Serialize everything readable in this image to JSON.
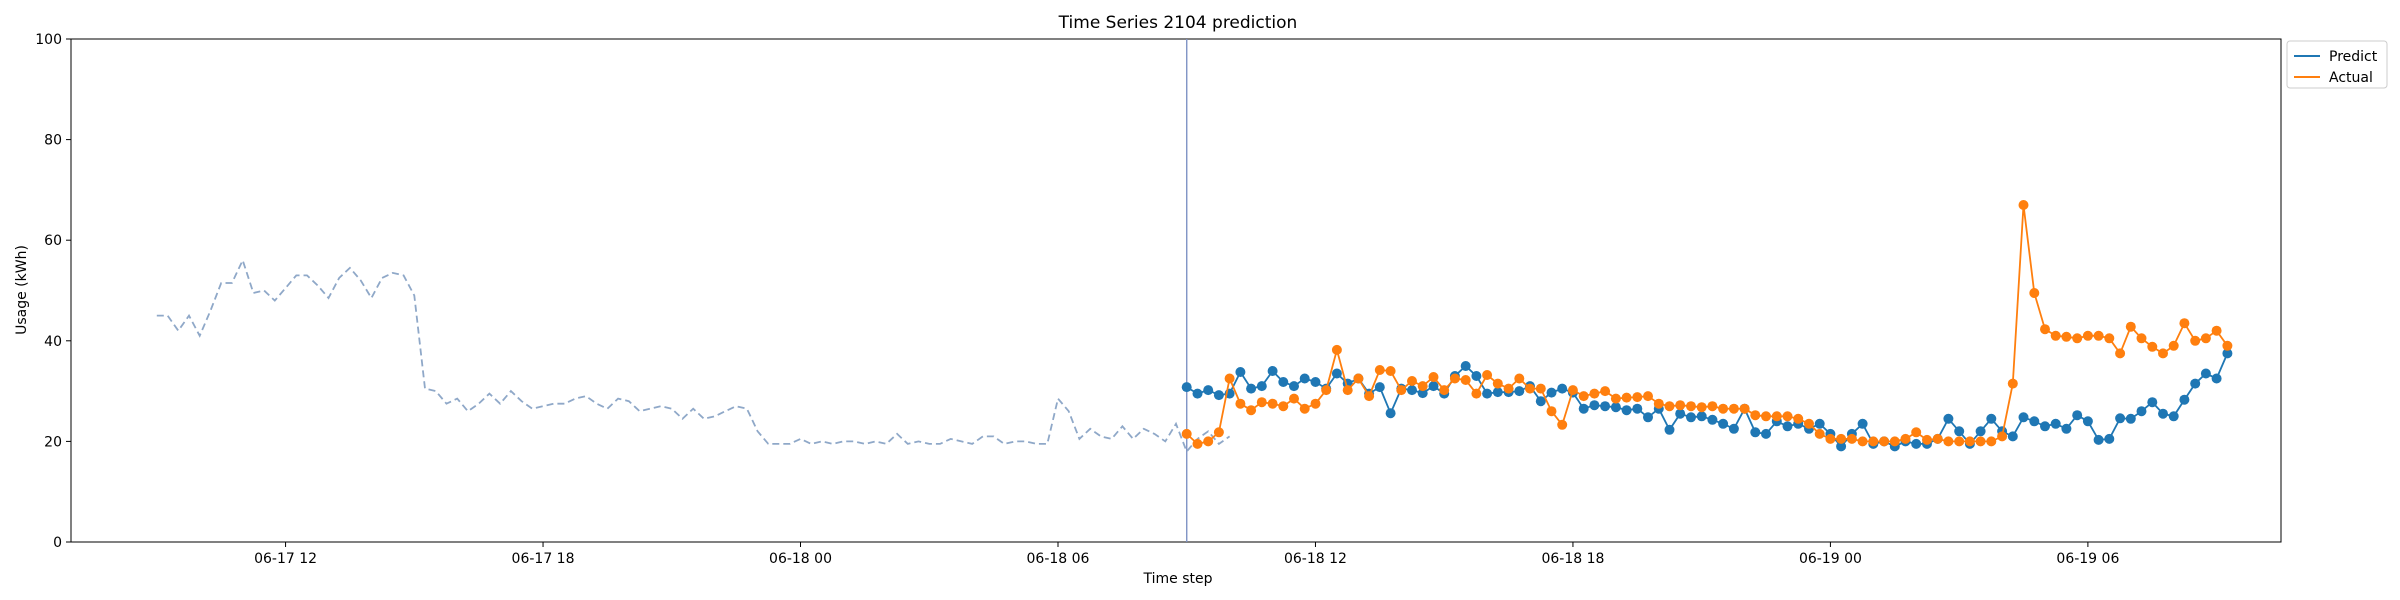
{
  "chart_data": {
    "type": "line",
    "title": "Time Series 2104 prediction",
    "xlabel": "Time step",
    "ylabel": "Usage (kWh)",
    "ylim": [
      0,
      100
    ],
    "yticks": [
      0,
      20,
      40,
      60,
      80,
      100
    ],
    "xlim": [
      "2025-06-17 07:00",
      "2025-06-19 10:30"
    ],
    "xticks": [
      {
        "t": "2025-06-17 12:00",
        "label": "06-17 12"
      },
      {
        "t": "2025-06-17 18:00",
        "label": "06-17 18"
      },
      {
        "t": "2025-06-18 00:00",
        "label": "06-18 00"
      },
      {
        "t": "2025-06-18 06:00",
        "label": "06-18 06"
      },
      {
        "t": "2025-06-18 12:00",
        "label": "06-18 12"
      },
      {
        "t": "2025-06-18 18:00",
        "label": "06-18 18"
      },
      {
        "t": "2025-06-19 00:00",
        "label": "06-19 00"
      },
      {
        "t": "2025-06-19 06:00",
        "label": "06-19 06"
      }
    ],
    "grid": false,
    "legend_position": "top-right outside",
    "forecast_start": "2025-06-18 09:00",
    "history": {
      "start": "2025-06-17 09:00",
      "step_minutes": 15,
      "color": "#8fa8c8",
      "style": "dashed",
      "values": [
        45,
        45,
        42,
        45,
        41,
        46,
        51.5,
        51.5,
        56,
        49.5,
        50,
        48,
        50.5,
        53,
        53,
        51,
        48.5,
        52.5,
        54.5,
        52,
        48.5,
        52.5,
        53.5,
        53,
        49,
        30.5,
        30,
        27.5,
        28.5,
        26,
        27.5,
        29.5,
        27.5,
        30,
        28,
        26.5,
        27,
        27.5,
        27.5,
        28.5,
        29,
        27.5,
        26.5,
        28.5,
        28,
        26,
        26.5,
        27,
        26.5,
        24.5,
        26.5,
        24.5,
        25,
        26,
        27,
        26.5,
        22,
        19.5,
        19.5,
        19.5,
        20.5,
        19.5,
        20,
        19.5,
        20,
        20,
        19.5,
        20,
        19.5,
        21.5,
        19.5,
        20,
        19.5,
        19.5,
        20.5,
        20,
        19.5,
        21,
        21,
        19.5,
        20,
        20,
        19.5,
        19.5,
        28.5,
        26,
        20.5,
        22.5,
        21,
        20.5,
        23,
        20.5,
        22.5,
        21.5,
        20,
        23.5,
        18,
        20.5,
        22,
        19.5,
        21
      ]
    },
    "series": [
      {
        "name": "Predict",
        "color": "#1f77b4",
        "start": "2025-06-18 09:00",
        "step_minutes": 15,
        "values": [
          30.8,
          29.5,
          30.2,
          29.2,
          29.5,
          33.8,
          30.5,
          31,
          34,
          31.8,
          31,
          32.5,
          31.8,
          30.5,
          33.5,
          31.5,
          32.5,
          29.5,
          30.8,
          25.6,
          30.5,
          30.2,
          29.6,
          31,
          29.5,
          33,
          35,
          33,
          29.5,
          29.8,
          29.8,
          30,
          31,
          28,
          29.7,
          30.5,
          29.7,
          26.5,
          27.2,
          27,
          26.8,
          26.2,
          26.5,
          24.8,
          26.5,
          22.3,
          25.5,
          24.8,
          25,
          24.3,
          23.5,
          22.5,
          26.5,
          21.8,
          21.5,
          24,
          23,
          23.5,
          22.5,
          23.5,
          21.5,
          19,
          21.5,
          23.5,
          19.5,
          20,
          19,
          20,
          19.5,
          19.5,
          20.5,
          24.5,
          22,
          19.5,
          22,
          24.5,
          22,
          21,
          24.8,
          24,
          23,
          23.5,
          22.5,
          25.2,
          24,
          20.3,
          20.5,
          24.6,
          24.5,
          26,
          27.8,
          25.5,
          25,
          28.3,
          31.5,
          33.5,
          32.5,
          37.5
        ]
      },
      {
        "name": "Actual",
        "color": "#ff7f0e",
        "start": "2025-06-18 09:00",
        "step_minutes": 15,
        "values": [
          21.5,
          19.5,
          20,
          21.8,
          32.5,
          27.5,
          26.2,
          27.8,
          27.5,
          27,
          28.5,
          26.5,
          27.5,
          30.2,
          38.2,
          30.2,
          32.5,
          29,
          34.2,
          34,
          30.2,
          32,
          31,
          32.8,
          30.2,
          32.5,
          32.2,
          29.5,
          33.2,
          31.5,
          30.5,
          32.5,
          30.5,
          30.5,
          26,
          23.3,
          30.2,
          29,
          29.5,
          30,
          28.5,
          28.7,
          28.8,
          29,
          27.5,
          27,
          27.2,
          27,
          26.8,
          27,
          26.5,
          26.5,
          26.5,
          25.2,
          25,
          25,
          25,
          24.5,
          23.5,
          21.5,
          20.5,
          20.5,
          20.5,
          20,
          20,
          20,
          20,
          20.5,
          21.8,
          20.3,
          20.5,
          20,
          20,
          20,
          20,
          20,
          21,
          31.5,
          67,
          49.5,
          42.3,
          41,
          40.8,
          40.5,
          41,
          41,
          40.5,
          37.5,
          42.8,
          40.5,
          38.8,
          37.5,
          39,
          43.5,
          40,
          40.5,
          42,
          39
        ]
      }
    ]
  }
}
